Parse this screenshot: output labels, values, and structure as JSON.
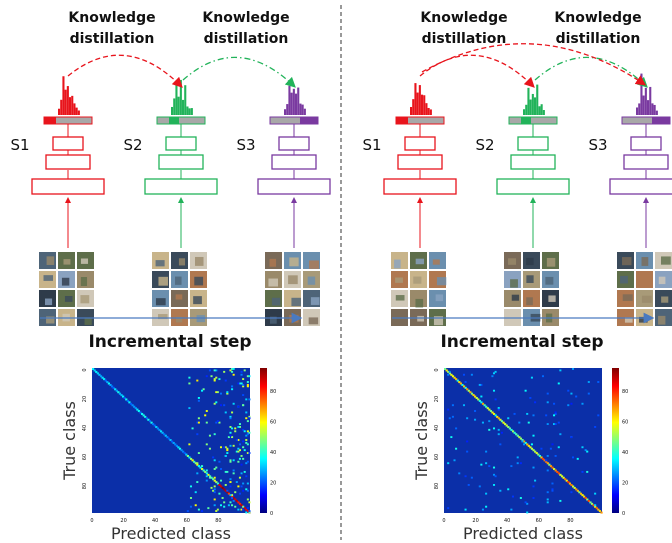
{
  "left_panel": {
    "kd_labels": [
      {
        "line1": "Knowledge",
        "line2": "distillation"
      },
      {
        "line1": "Knowledge",
        "line2": "distillation"
      }
    ],
    "stages": [
      "S1",
      "S2",
      "S3"
    ],
    "step_label": "Incremental step",
    "matrix": {
      "ylabel": "True class",
      "xlabel": "Predicted class",
      "xticks": [
        "0",
        "20",
        "40",
        "60",
        "80"
      ],
      "yticks": [
        "0",
        "20",
        "40",
        "60",
        "80"
      ],
      "colorbar_ticks": [
        "0",
        "20",
        "40",
        "60",
        "80"
      ]
    }
  },
  "right_panel": {
    "kd_labels": [
      {
        "line1": "Knowledge",
        "line2": "distillation"
      },
      {
        "line1": "Knowledge",
        "line2": "distillation"
      }
    ],
    "stages": [
      "S1",
      "S2",
      "S3"
    ],
    "step_label": "Incremental step",
    "matrix": {
      "ylabel": "True class",
      "xlabel": "Predicted class",
      "xticks": [
        "0",
        "20",
        "40",
        "60",
        "80"
      ],
      "yticks": [
        "0",
        "20",
        "40",
        "60",
        "80"
      ],
      "colorbar_ticks": [
        "0",
        "20",
        "40",
        "60",
        "80"
      ]
    }
  },
  "colors": {
    "s1": "#e8141c",
    "s2": "#22b35a",
    "s3": "#7a3aa0",
    "arrow": "#4a7ac0",
    "heat_bg": "#0b2fa8"
  }
}
